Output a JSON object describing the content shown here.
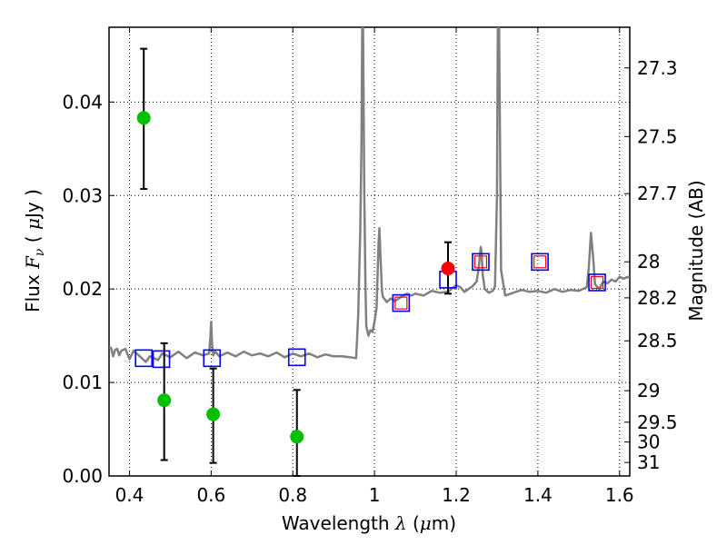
{
  "chart_data": {
    "type": "scatter",
    "xlabel": {
      "prefix": "Wavelength  ",
      "symbol": "λ",
      "suffix": " (",
      "unit_symbol": "μ",
      "unit_rest": "m)"
    },
    "ylabel": {
      "prefix": "Flux  ",
      "symbol": "F",
      "subscript": "ν",
      "suffix": "  (  ",
      "unit_symbol": "μ",
      "unit_rest": "Jy )"
    },
    "y2label": "Magnitude (AB)",
    "xlim": [
      0.35,
      1.625
    ],
    "ylim": [
      0.0,
      0.048
    ],
    "grid": true,
    "x_ticks": [
      {
        "v": 0.4,
        "t": "0.4"
      },
      {
        "v": 0.6,
        "t": "0.6"
      },
      {
        "v": 0.8,
        "t": "0.8"
      },
      {
        "v": 1.0,
        "t": "1"
      },
      {
        "v": 1.2,
        "t": "1.2"
      },
      {
        "v": 1.4,
        "t": "1.4"
      },
      {
        "v": 1.6,
        "t": "1.6"
      }
    ],
    "y_ticks": [
      {
        "v": 0.0,
        "t": "0.00"
      },
      {
        "v": 0.01,
        "t": "0.01"
      },
      {
        "v": 0.02,
        "t": "0.02"
      },
      {
        "v": 0.03,
        "t": "0.03"
      },
      {
        "v": 0.04,
        "t": "0.04"
      }
    ],
    "y2_ticks": [
      {
        "mag": 27.3,
        "t": "27.3"
      },
      {
        "mag": 27.5,
        "t": "27.5"
      },
      {
        "mag": 27.7,
        "t": "27.7"
      },
      {
        "mag": 28.0,
        "t": "28"
      },
      {
        "mag": 28.2,
        "t": "28.2"
      },
      {
        "mag": 28.5,
        "t": "28.5"
      },
      {
        "mag": 29.0,
        "t": "29"
      },
      {
        "mag": 29.5,
        "t": "29.5"
      },
      {
        "mag": 30.0,
        "t": "30"
      },
      {
        "mag": 31.0,
        "t": "31"
      }
    ],
    "series": [
      {
        "style": "line",
        "color": "#808080",
        "x": [
          0.35,
          0.355,
          0.36,
          0.365,
          0.37,
          0.375,
          0.38,
          0.39,
          0.4,
          0.41,
          0.42,
          0.43,
          0.44,
          0.45,
          0.46,
          0.47,
          0.48,
          0.49,
          0.5,
          0.52,
          0.54,
          0.56,
          0.58,
          0.595,
          0.598,
          0.6,
          0.602,
          0.605,
          0.61,
          0.62,
          0.64,
          0.66,
          0.68,
          0.7,
          0.72,
          0.74,
          0.76,
          0.78,
          0.8,
          0.82,
          0.84,
          0.86,
          0.88,
          0.9,
          0.92,
          0.94,
          0.955,
          0.96,
          0.965,
          0.968,
          0.97,
          0.972,
          0.975,
          0.978,
          0.98,
          0.985,
          0.99,
          0.995,
          1.0,
          1.005,
          1.01,
          1.012,
          1.015,
          1.018,
          1.02,
          1.03,
          1.04,
          1.05,
          1.06,
          1.07,
          1.08,
          1.09,
          1.1,
          1.12,
          1.14,
          1.16,
          1.18,
          1.2,
          1.21,
          1.22,
          1.23,
          1.24,
          1.25,
          1.255,
          1.26,
          1.262,
          1.265,
          1.27,
          1.28,
          1.29,
          1.295,
          1.3,
          1.302,
          1.305,
          1.31,
          1.32,
          1.34,
          1.36,
          1.38,
          1.4,
          1.42,
          1.44,
          1.46,
          1.48,
          1.5,
          1.52,
          1.525,
          1.53,
          1.535,
          1.54,
          1.55,
          1.56,
          1.57,
          1.58,
          1.59,
          1.6,
          1.61,
          1.62,
          1.625
        ],
        "y": [
          0.0138,
          0.0137,
          0.0128,
          0.0135,
          0.0136,
          0.0129,
          0.0134,
          0.0136,
          0.0125,
          0.0134,
          0.013,
          0.0126,
          0.0122,
          0.0128,
          0.0126,
          0.0124,
          0.0131,
          0.0129,
          0.0127,
          0.0133,
          0.0126,
          0.0132,
          0.0129,
          0.0131,
          0.0148,
          0.0165,
          0.0142,
          0.0129,
          0.0133,
          0.0128,
          0.0132,
          0.0128,
          0.0133,
          0.0129,
          0.0131,
          0.0128,
          0.0132,
          0.0127,
          0.0131,
          0.0128,
          0.0131,
          0.0127,
          0.013,
          0.0128,
          0.0128,
          0.0127,
          0.0126,
          0.017,
          0.026,
          0.035,
          0.048,
          0.048,
          0.03,
          0.02,
          0.016,
          0.015,
          0.0156,
          0.0154,
          0.0165,
          0.018,
          0.025,
          0.0265,
          0.023,
          0.02,
          0.0192,
          0.0186,
          0.019,
          0.0187,
          0.019,
          0.0193,
          0.0195,
          0.0193,
          0.0195,
          0.0193,
          0.0198,
          0.0196,
          0.0197,
          0.0204,
          0.0202,
          0.0197,
          0.02,
          0.0203,
          0.0208,
          0.0222,
          0.0245,
          0.024,
          0.0215,
          0.02,
          0.0196,
          0.0198,
          0.0203,
          0.03,
          0.048,
          0.048,
          0.022,
          0.0193,
          0.0196,
          0.0199,
          0.0197,
          0.0198,
          0.0196,
          0.02,
          0.0197,
          0.0199,
          0.0198,
          0.0202,
          0.0225,
          0.026,
          0.0235,
          0.0205,
          0.02,
          0.0208,
          0.0206,
          0.021,
          0.0208,
          0.0213,
          0.0211,
          0.0213,
          0.0212
        ]
      },
      {
        "style": "open-square",
        "color": "#0000ff",
        "x": [
          0.435,
          0.478,
          0.602,
          0.81,
          1.065,
          1.18,
          1.26,
          1.405,
          1.545
        ],
        "y": [
          0.0126,
          0.0125,
          0.0126,
          0.0127,
          0.0185,
          0.021,
          0.0229,
          0.0229,
          0.0207
        ]
      },
      {
        "style": "open-square",
        "color": "#ff0000",
        "x": [
          1.065,
          1.26,
          1.405,
          1.545
        ],
        "y": [
          0.0185,
          0.0229,
          0.0229,
          0.0207
        ]
      },
      {
        "style": "point-errorbar",
        "color": "#00c000",
        "x": [
          0.435,
          0.485,
          0.605,
          0.81
        ],
        "y": [
          0.0383,
          0.0081,
          0.0066,
          0.0042
        ],
        "yerr_low": [
          0.0307,
          0.0017,
          0.0014,
          0.0
        ],
        "yerr_high": [
          0.0457,
          0.0142,
          0.0115,
          0.0092
        ]
      },
      {
        "style": "point-errorbar",
        "color": "#ff0000",
        "x": [
          1.18
        ],
        "y": [
          0.0222
        ],
        "yerr_low": [
          0.0195
        ],
        "yerr_high": [
          0.025
        ]
      }
    ]
  }
}
